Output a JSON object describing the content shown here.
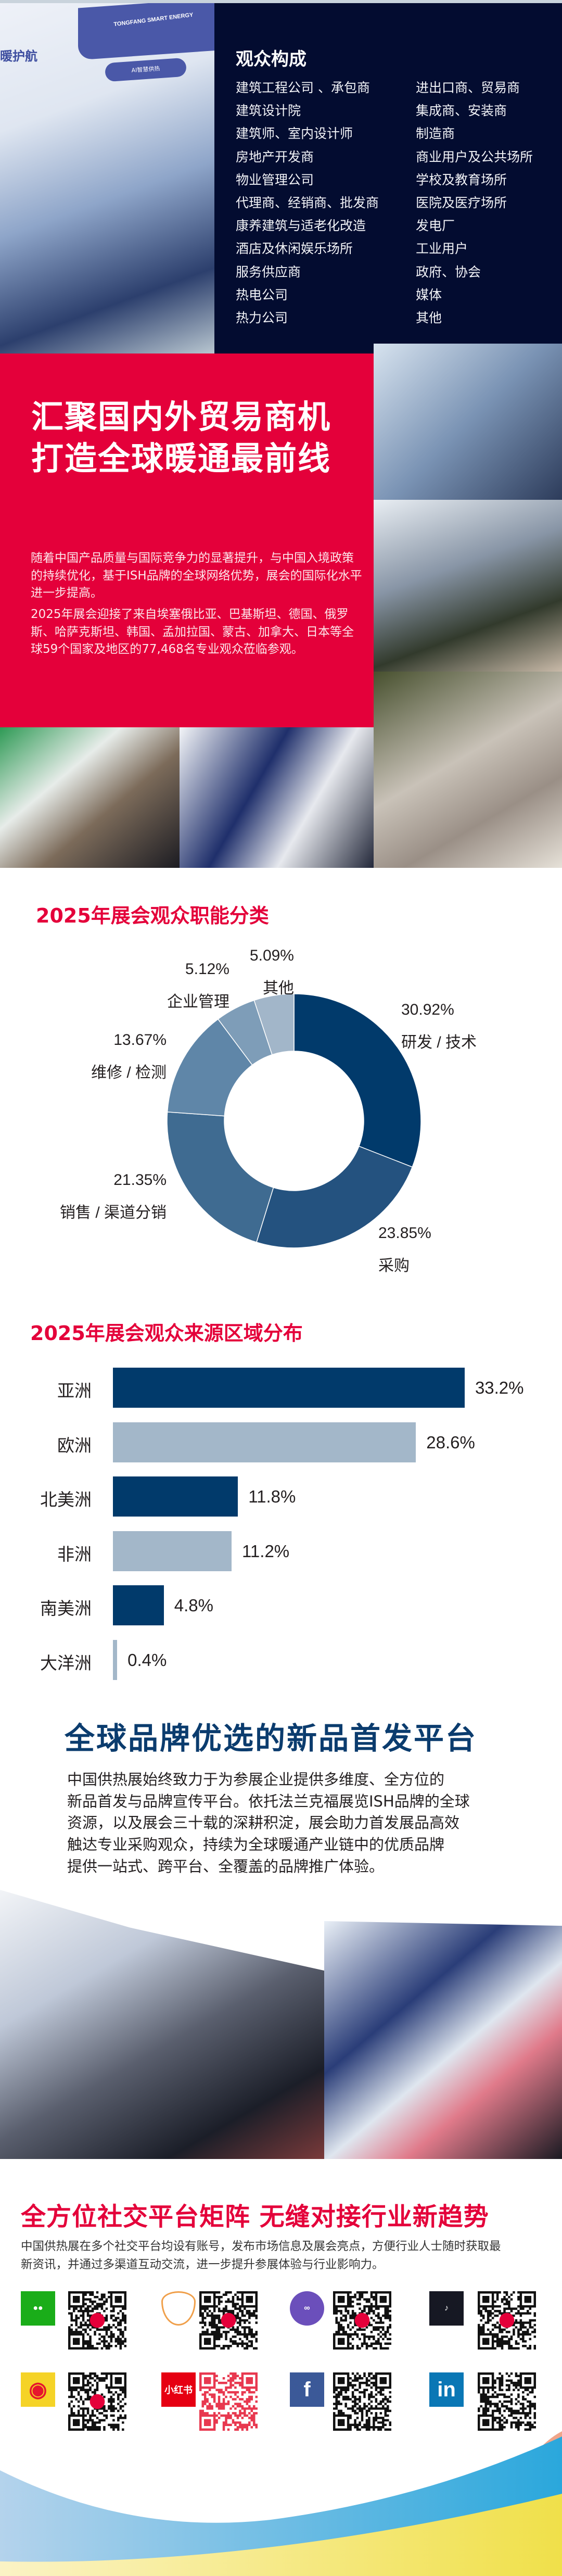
{
  "top_photo": {
    "slogan": "暖护航",
    "brand": "TONGFANG SMART ENERGY",
    "pill": "AI智慧供热"
  },
  "audience": {
    "title": "观众构成",
    "left": [
      "建筑工程公司 、承包商",
      "建筑设计院",
      "建筑师、室内设计师",
      "房地产开发商",
      "物业管理公司",
      "代理商、经销商、批发商",
      "康养建筑与适老化改造",
      "酒店及休闲娱乐场所",
      "服务供应商",
      "热电公司",
      "热力公司"
    ],
    "right": [
      "进出口商、贸易商",
      "集成商、安装商",
      "制造商",
      "商业用户及公共场所",
      "学校及教育场所",
      "医院及医疗场所",
      "发电厂",
      "工业用户",
      "政府、协会",
      "媒体",
      "其他"
    ]
  },
  "trade": {
    "title_line1": "汇聚国内外贸易商机",
    "title_line2": "打造全球暖通最前线",
    "para1": "随着中国产品质量与国际竞争力的显著提升，与中国入境政策的持续优化，基于ISH品牌的全球网络优势，展会的国际化水平进一步提高。",
    "para2": "2025年展会迎接了来自埃塞俄比亚、巴基斯坦、德国、俄罗斯、哈萨克斯坦、韩国、孟加拉国、蒙古、加拿大、日本等全球59个国家及地区的77,468名专业观众莅临参观。"
  },
  "colors": {
    "red": "#e4003a",
    "navy": "#030c30",
    "dark_blue": "#013a6b",
    "light_blue": "#a3b7c9"
  },
  "chart_data": [
    {
      "type": "pie",
      "title": "2025年展会观众职能分类",
      "donut": true,
      "categories": [
        "研发 / 技术",
        "采购",
        "销售 / 渠道分销",
        "维修 / 检测",
        "企业管理",
        "其他"
      ],
      "values": [
        30.92,
        23.85,
        21.35,
        13.67,
        5.12,
        5.09
      ],
      "labels": [
        "30.92%",
        "23.85%",
        "21.35%",
        "13.67%",
        "5.12%",
        "5.09%"
      ],
      "colors": [
        "#013a6b",
        "#24527f",
        "#3f6b91",
        "#5f86a8",
        "#7e9db8",
        "#a2b6c9"
      ]
    },
    {
      "type": "bar",
      "orientation": "horizontal",
      "title": "2025年展会观众来源区域分布",
      "categories": [
        "亚洲",
        "欧洲",
        "北美洲",
        "非洲",
        "南美洲",
        "大洋洲"
      ],
      "values": [
        33.2,
        28.6,
        11.8,
        11.2,
        4.8,
        0.4
      ],
      "labels": [
        "33.2%",
        "28.6%",
        "11.8%",
        "11.2%",
        "4.8%",
        "0.4%"
      ],
      "colors": [
        "#013a6b",
        "#a3b7c9",
        "#013a6b",
        "#a3b7c9",
        "#013a6b",
        "#a3b7c9"
      ]
    }
  ],
  "brand": {
    "title": "全球品牌优选的新品首发平台",
    "lines": [
      "中国供热展始终致力于为参展企业提供多维度、全方位的",
      "新品首发与品牌宣传平台。依托法兰克福展览ISH品牌的全球",
      "资源，以及展会三十载的深耕积淀，展会助力首发展品高效",
      "触达专业采购观众，持续为全球暖通产业链中的优质品牌",
      "提供一站式、跨平台、全覆盖的品牌推广体验。"
    ]
  },
  "social": {
    "title": "全方位社交平台矩阵  无缝对接行业新趋势",
    "lines": [
      "中国供热展在多个社交平台均设有账号，发布市场信息及展会亮点，方便行业人士随时获取最",
      "新资讯，并通过多渠道互动交流，进一步提升参展体验与行业影响力。"
    ],
    "platforms": [
      {
        "icon": "wechat-icon",
        "color": "#1aad19"
      },
      {
        "icon": "channels-icon",
        "color": "#f0a04b"
      },
      {
        "icon": "mini-program-icon",
        "color": "#6b4fbb"
      },
      {
        "icon": "tiktok-icon",
        "color": "#161823"
      },
      {
        "icon": "weibo-icon",
        "color": "#f5d327"
      },
      {
        "icon": "xiaohongshu-icon",
        "color": "#e60012",
        "text": "小红书"
      },
      {
        "icon": "facebook-icon",
        "color": "#3b5998",
        "text": "f"
      },
      {
        "icon": "linkedin-icon",
        "color": "#0a77b5",
        "text": "in"
      }
    ],
    "qr_logo": "ISH CIHE"
  }
}
